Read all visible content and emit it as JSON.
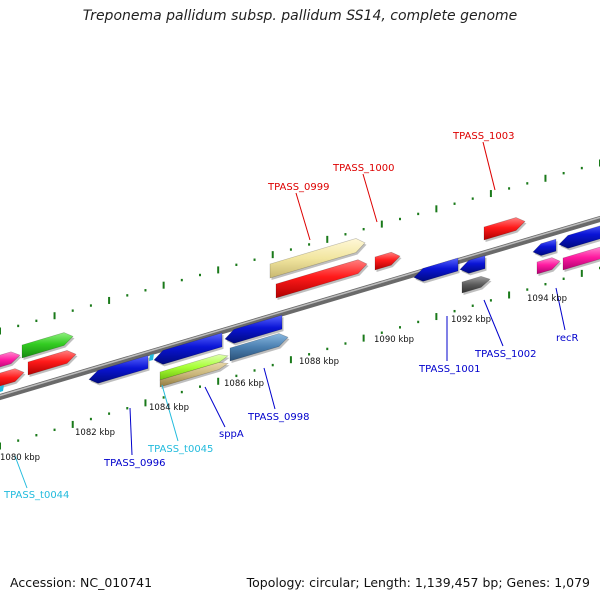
{
  "title": "Treponema pallidum subsp. pallidum SS14, complete genome",
  "footer": {
    "accession": "Accession: NC_010741",
    "summary": "Topology: circular; Length: 1,139,457 bp; Genes: 1,079"
  },
  "colors": {
    "red": "#ff1a1a",
    "blue": "#0a14d6",
    "green": "#33cc22",
    "pink": "#ff1aa0",
    "khaki": "#f2e6a0",
    "lime": "#a6ff33",
    "tan": "#c8b478",
    "steel": "#4a7fb0",
    "gray": "#5a5a5a",
    "backbone": "#808080",
    "tick": "#1a7a1a",
    "label_red": "#dd0000",
    "label_blue": "#0000cc",
    "label_cyan": "#22bbdd"
  },
  "kbp_ticks": [
    "1080 kbp",
    "1082 kbp",
    "1084 kbp",
    "1086 kbp",
    "1088 kbp",
    "1090 kbp",
    "1092 kbp",
    "1094 kbp"
  ],
  "top_labels": [
    "TPASS_0999",
    "TPASS_1000",
    "TPASS_1003"
  ],
  "bottom_labels": [
    "TPASS_t0044",
    "TPASS_0996",
    "TPASS_t0045",
    "sppA",
    "TPASS_0998",
    "TPASS_1001",
    "TPASS_1002",
    "recR"
  ]
}
